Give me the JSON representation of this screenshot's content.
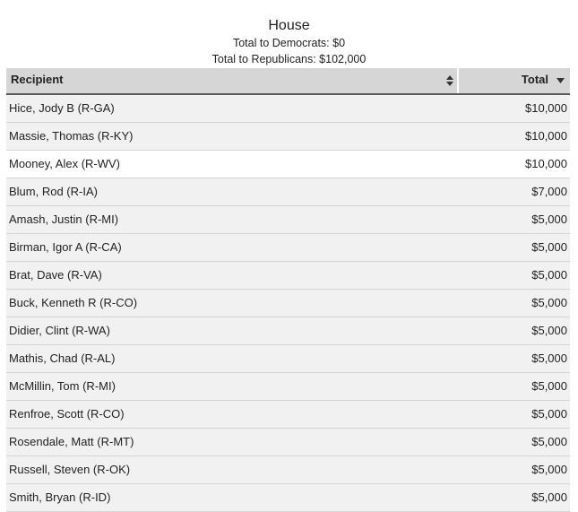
{
  "header": {
    "title": "House",
    "dem_total": "Total to Democrats: $0",
    "rep_total": "Total to Republicans: $102,000"
  },
  "table": {
    "columns": {
      "recipient": "Recipient",
      "total": "Total"
    },
    "sort": {
      "column": "total",
      "direction": "descending"
    },
    "rows": [
      {
        "name": "Hice, Jody B (R-GA)",
        "total": "$10,000",
        "shaded": true
      },
      {
        "name": "Massie, Thomas (R-KY)",
        "total": "$10,000",
        "shaded": true
      },
      {
        "name": "Mooney, Alex (R-WV)",
        "total": "$10,000",
        "shaded": false
      },
      {
        "name": "Blum, Rod (R-IA)",
        "total": "$7,000",
        "shaded": true
      },
      {
        "name": "Amash, Justin (R-MI)",
        "total": "$5,000",
        "shaded": true
      },
      {
        "name": "Birman, Igor A (R-CA)",
        "total": "$5,000",
        "shaded": true
      },
      {
        "name": "Brat, Dave (R-VA)",
        "total": "$5,000",
        "shaded": true
      },
      {
        "name": "Buck, Kenneth R (R-CO)",
        "total": "$5,000",
        "shaded": true
      },
      {
        "name": "Didier, Clint (R-WA)",
        "total": "$5,000",
        "shaded": true
      },
      {
        "name": "Mathis, Chad (R-AL)",
        "total": "$5,000",
        "shaded": true
      },
      {
        "name": "McMillin, Tom (R-MI)",
        "total": "$5,000",
        "shaded": true
      },
      {
        "name": "Renfroe, Scott (R-CO)",
        "total": "$5,000",
        "shaded": true
      },
      {
        "name": "Rosendale, Matt (R-MT)",
        "total": "$5,000",
        "shaded": true
      },
      {
        "name": "Russell, Steven (R-OK)",
        "total": "$5,000",
        "shaded": true
      },
      {
        "name": "Smith, Bryan (R-ID)",
        "total": "$5,000",
        "shaded": true
      }
    ]
  },
  "colors": {
    "header_bg": "#d6d6d6",
    "header_border": "#5a5a5a",
    "row_shaded": "#f1f1f1",
    "row_plain": "#ffffff",
    "row_border": "#d4d4d4"
  },
  "icons": {
    "recipient_sort": "sort-both-icon",
    "total_sort": "sort-descending-icon"
  }
}
